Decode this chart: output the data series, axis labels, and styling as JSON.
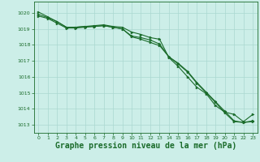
{
  "background_color": "#cceee8",
  "grid_color": "#aad8d0",
  "line_color": "#1a6b2a",
  "marker_color": "#1a6b2a",
  "xlim": [
    -0.5,
    23.5
  ],
  "ylim": [
    1012.5,
    1020.7
  ],
  "yticks": [
    1013,
    1014,
    1015,
    1016,
    1017,
    1018,
    1019,
    1020
  ],
  "xticks": [
    0,
    1,
    2,
    3,
    4,
    5,
    6,
    7,
    8,
    9,
    10,
    11,
    12,
    13,
    14,
    15,
    16,
    17,
    18,
    19,
    20,
    21,
    22,
    23
  ],
  "series1_x": [
    0,
    1,
    2,
    3,
    4,
    5,
    6,
    7,
    8,
    9,
    10,
    11,
    12,
    13,
    14,
    15,
    16,
    17,
    18,
    19,
    20,
    21,
    22,
    23
  ],
  "series1_y": [
    1019.8,
    1019.65,
    1019.35,
    1019.05,
    1019.05,
    1019.1,
    1019.15,
    1019.2,
    1019.1,
    1019.0,
    1018.55,
    1018.45,
    1018.3,
    1018.05,
    1017.25,
    1016.85,
    1016.35,
    1015.65,
    1015.05,
    1014.45,
    1013.85,
    1013.25,
    1013.15,
    1013.2
  ],
  "series2_x": [
    0,
    1,
    2,
    3,
    4,
    5,
    6,
    7,
    8,
    9,
    10,
    11,
    12,
    13,
    14,
    15,
    16,
    17,
    18,
    19,
    20,
    21,
    22,
    23
  ],
  "series2_y": [
    1019.9,
    1019.7,
    1019.45,
    1019.1,
    1019.1,
    1019.15,
    1019.2,
    1019.25,
    1019.15,
    1019.1,
    1018.8,
    1018.65,
    1018.45,
    1018.35,
    1017.2,
    1016.65,
    1016.0,
    1015.35,
    1014.95,
    1014.2,
    1013.8,
    1013.65,
    1013.2,
    1013.65
  ],
  "series3_x": [
    0,
    1,
    2,
    3,
    4,
    5,
    6,
    7,
    8,
    9,
    10,
    11,
    12,
    13,
    14,
    15,
    16,
    17,
    18,
    19,
    20,
    21,
    22,
    23
  ],
  "series3_y": [
    1020.05,
    1019.75,
    1019.45,
    1019.1,
    1019.1,
    1019.15,
    1019.15,
    1019.2,
    1019.1,
    1019.0,
    1018.5,
    1018.35,
    1018.15,
    1017.95,
    1017.25,
    1016.8,
    1016.3,
    1015.6,
    1015.0,
    1014.4,
    1013.75,
    1013.2,
    1013.15,
    1013.25
  ],
  "xlabel": "Graphe pression niveau de la mer (hPa)",
  "xlabel_fontsize": 7.0,
  "tick_label_color": "#1a6b2a",
  "axis_label_color": "#1a6b2a"
}
